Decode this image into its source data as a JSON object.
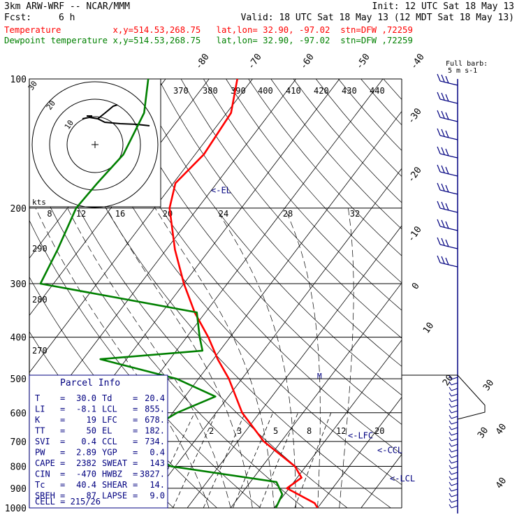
{
  "header": {
    "model": "3km ARW-WRF -- NCAR/MMM",
    "init": "Init: 12 UTC Sat 18 May 13",
    "fcst_label": "Fcst:",
    "fcst_value": "6 h",
    "valid": "Valid: 18 UTC Sat 18 May 13 (12 MDT Sat 18 May 13)",
    "temp_line": "Temperature          x,y=514.53,268.75   lat,lon= 32.90, -97.02  stn=DFW ,72259",
    "dew_line": "Dewpoint temperature x,y=514.53,268.75   lat,lon= 32.90, -97.02  stn=DFW ,72259"
  },
  "colors": {
    "temperature": "#ff0000",
    "dewpoint": "#008000",
    "parcel": "#000000",
    "annotation": "#000080",
    "box": "#000080"
  },
  "chart_data": {
    "type": "line",
    "title": "",
    "xlabel": "",
    "ylabel": "",
    "y_axis": "pressure (hPa), log scale",
    "pressure_ticks": [
      100,
      200,
      300,
      400,
      500,
      600,
      700,
      800,
      900,
      1000
    ],
    "isotherm_labels_top": [
      "-80",
      "-70",
      "-60",
      "-50",
      "-40"
    ],
    "isotherm_labels_right": [
      "-30",
      "-20",
      "-10",
      "0",
      "10",
      "20",
      "30",
      "40"
    ],
    "theta_labels": [
      "370",
      "380",
      "390",
      "400",
      "410",
      "420",
      "430",
      "440"
    ],
    "theta_labels_left": [
      "290",
      "280",
      "270"
    ],
    "mixing_ratio_labels": [
      "2",
      "3",
      "5",
      "8",
      "12"
    ],
    "series": [
      {
        "name": "Temperature",
        "color": "#ff0000",
        "points": [
          {
            "p": 100,
            "t": -63.5
          },
          {
            "p": 120,
            "t": -59.0
          },
          {
            "p": 150,
            "t": -58.0
          },
          {
            "p": 175,
            "t": -59.5
          },
          {
            "p": 200,
            "t": -56.5
          },
          {
            "p": 250,
            "t": -48.0
          },
          {
            "p": 300,
            "t": -40.0
          },
          {
            "p": 350,
            "t": -32.5
          },
          {
            "p": 400,
            "t": -25.0
          },
          {
            "p": 450,
            "t": -19.0
          },
          {
            "p": 500,
            "t": -13.0
          },
          {
            "p": 600,
            "t": -4.0
          },
          {
            "p": 700,
            "t": 6.0
          },
          {
            "p": 800,
            "t": 17.5
          },
          {
            "p": 850,
            "t": 21.0
          },
          {
            "p": 900,
            "t": 19.5
          },
          {
            "p": 975,
            "t": 28.5
          },
          {
            "p": 1000,
            "t": 30.0
          }
        ]
      },
      {
        "name": "Dewpoint temperature",
        "color": "#008000",
        "points": [
          {
            "p": 100,
            "t": -84.0
          },
          {
            "p": 120,
            "t": -79.0
          },
          {
            "p": 150,
            "t": -76.5
          },
          {
            "p": 175,
            "t": -77.5
          },
          {
            "p": 200,
            "t": -78.0
          },
          {
            "p": 250,
            "t": -75.0
          },
          {
            "p": 300,
            "t": -73.0
          },
          {
            "p": 350,
            "t": -32.0
          },
          {
            "p": 400,
            "t": -27.0
          },
          {
            "p": 430,
            "t": -24.0
          },
          {
            "p": 450,
            "t": -46.0
          },
          {
            "p": 500,
            "t": -25.0
          },
          {
            "p": 550,
            "t": -13.0
          },
          {
            "p": 600,
            "t": -19.0
          },
          {
            "p": 700,
            "t": -25.0
          },
          {
            "p": 800,
            "t": -11.0
          },
          {
            "p": 870,
            "t": 16.0
          },
          {
            "p": 930,
            "t": 19.5
          },
          {
            "p": 1000,
            "t": 20.4
          }
        ]
      }
    ],
    "annotations": [
      {
        "label": "<-EL",
        "p": 182
      },
      {
        "label": "<-LFC",
        "p": 678
      },
      {
        "label": "<-CCL",
        "p": 734
      },
      {
        "label": "<-LCL",
        "p": 855
      }
    ],
    "hodograph": {
      "units": "kts",
      "ring_labels": [
        "10",
        "20",
        "30"
      ],
      "axis_labels": [
        "8",
        "12",
        "16",
        "20",
        "24",
        "28",
        "32"
      ]
    },
    "wind_barb_scale": {
      "title": "Full barb:",
      "value": "5 m s-1"
    },
    "wind_profile_labels": [
      "30",
      "40"
    ]
  },
  "parcel_info": {
    "title": "Parcel Info",
    "rows": [
      {
        "k1": "T",
        "v1": "30.0",
        "k2": "Td",
        "v2": "20.4"
      },
      {
        "k1": "LI",
        "v1": "-8.1",
        "k2": "LCL",
        "v2": "855."
      },
      {
        "k1": "K",
        "v1": "19",
        "k2": "LFC",
        "v2": "678."
      },
      {
        "k1": "TT",
        "v1": "50",
        "k2": "EL",
        "v2": "182."
      },
      {
        "k1": "SVI",
        "v1": "0.4",
        "k2": "CCL",
        "v2": "734."
      },
      {
        "k1": "PW",
        "v1": "2.89",
        "k2": "YGP",
        "v2": "0.4"
      },
      {
        "k1": "CAPE",
        "v1": "2382",
        "k2": "SWEAT",
        "v2": "143"
      },
      {
        "k1": "CIN",
        "v1": "-470",
        "k2": "HWBZ",
        "v2": "3827."
      },
      {
        "k1": "Tc",
        "v1": "40.4",
        "k2": "SHEAR",
        "v2": "14."
      },
      {
        "k1": "SREH",
        "v1": "87",
        "k2": "LAPSE",
        "v2": "9.0"
      }
    ],
    "cell": "CELL = 215/26"
  }
}
